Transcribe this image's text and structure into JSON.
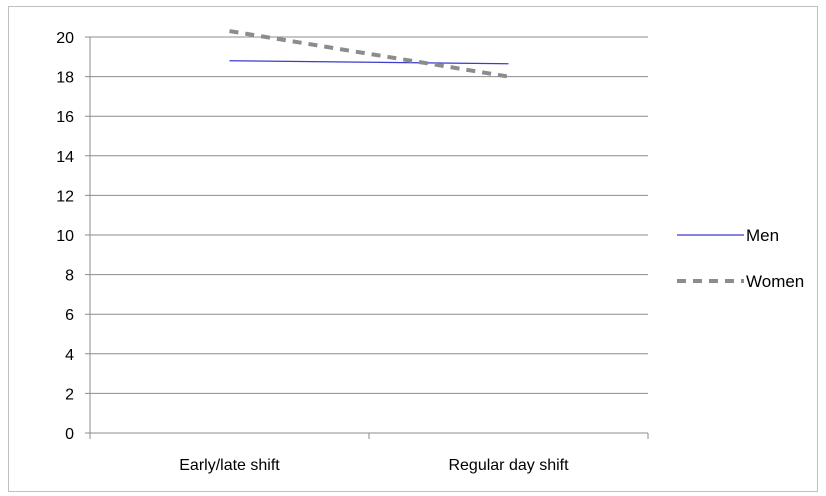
{
  "chart_data": {
    "type": "line",
    "categories": [
      "Early/late shift",
      "Regular day shift"
    ],
    "series": [
      {
        "name": "Men",
        "values": [
          18.8,
          18.65
        ],
        "color": "#3b3bcc",
        "style": "solid"
      },
      {
        "name": "Women",
        "values": [
          20.3,
          18.0
        ],
        "color": "#8c8c8c",
        "style": "dashed"
      }
    ],
    "ylim": [
      0,
      20
    ],
    "yticks": [
      0,
      2,
      4,
      6,
      8,
      10,
      12,
      14,
      16,
      18,
      20
    ],
    "grid": true,
    "legend": "right",
    "title": "",
    "xlabel": "",
    "ylabel": ""
  }
}
